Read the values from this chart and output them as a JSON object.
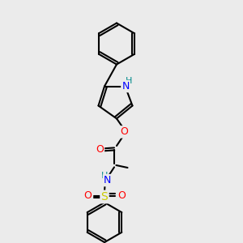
{
  "bg_color": "#ebebeb",
  "bond_color": "#000000",
  "bond_lw": 1.5,
  "atom_colors": {
    "N": "#0000ff",
    "NH": "#008b8b",
    "O": "#ff0000",
    "S": "#cccc00",
    "C": "#000000"
  },
  "font_size": 9,
  "font_size_small": 8
}
